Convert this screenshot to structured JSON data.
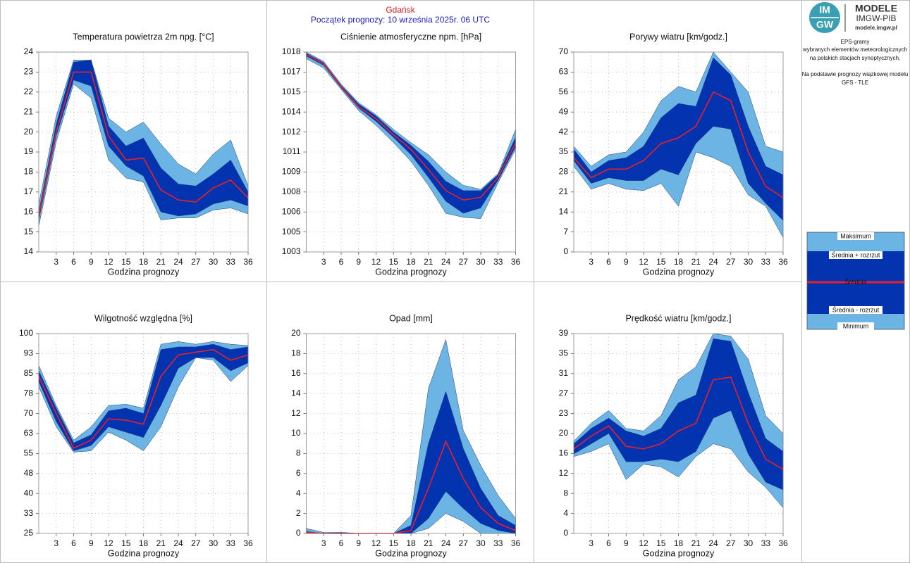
{
  "header": {
    "station": "Gdańsk",
    "subtitle": "Początek prognozy: 10 września 2025r. 06 UTC"
  },
  "sidebar": {
    "logo_top": "IM",
    "logo_bottom": "GW",
    "brand": "MODELE",
    "org": "IMGW-PIB",
    "url": "modele.imgw.pl",
    "description": [
      "EPS-gramy",
      "wybranych elementów meteorologicznych",
      "na polskich stacjach  synoptycznych.",
      "Na podstawie prognozy wiązkowej modelu",
      "GFS - TLE"
    ]
  },
  "legend": {
    "items": [
      {
        "label": "Maksimum",
        "color": "#6cb4e4"
      },
      {
        "label": "Średnia + rozrzut",
        "color": "#0433b0"
      },
      {
        "label": "Średnia",
        "color": "#e8202a"
      },
      {
        "label": "Średnia - rozrzut",
        "color": "#0433b0"
      },
      {
        "label": "Minimum",
        "color": "#6cb4e4"
      }
    ]
  },
  "chart_data": [
    {
      "type": "band",
      "title": "Temperatura powietrza 2m npg. [°C]",
      "xlabel": "Godzina prognozy",
      "x": [
        0,
        3,
        6,
        9,
        12,
        15,
        18,
        21,
        24,
        27,
        30,
        33,
        36
      ],
      "xlim": [
        0,
        36
      ],
      "xticks": [
        3,
        6,
        9,
        12,
        15,
        18,
        21,
        24,
        27,
        30,
        33,
        36
      ],
      "ylim": [
        14,
        24
      ],
      "yticks": [
        14,
        15,
        16,
        17,
        18,
        19,
        20,
        21,
        22,
        23,
        24
      ],
      "grid": true,
      "max": [
        16.4,
        20.8,
        23.6,
        23.6,
        20.7,
        20.0,
        20.5,
        19.4,
        18.4,
        17.9,
        18.9,
        19.6,
        17.3
      ],
      "upper": [
        16.0,
        20.4,
        23.5,
        23.6,
        20.3,
        19.3,
        19.7,
        18.2,
        17.4,
        17.3,
        17.9,
        18.6,
        17.0
      ],
      "mean": [
        15.8,
        20.0,
        23.0,
        23.0,
        19.8,
        18.6,
        18.7,
        17.1,
        16.6,
        16.5,
        17.2,
        17.6,
        16.7
      ],
      "lower": [
        15.6,
        19.8,
        22.6,
        22.3,
        19.3,
        18.3,
        17.8,
        16.0,
        15.8,
        15.9,
        16.4,
        16.6,
        16.3
      ],
      "min": [
        15.3,
        19.5,
        22.4,
        21.7,
        18.6,
        17.7,
        17.5,
        15.6,
        15.7,
        15.7,
        16.1,
        16.2,
        15.9
      ]
    },
    {
      "type": "band",
      "title": "Ciśnienie atmosferyczne npm. [hPa]",
      "xlabel": "Godzina prognozy",
      "x": [
        0,
        3,
        6,
        9,
        12,
        15,
        18,
        21,
        24,
        27,
        30,
        33,
        36
      ],
      "xlim": [
        0,
        36
      ],
      "xticks": [
        3,
        6,
        9,
        12,
        15,
        18,
        21,
        24,
        27,
        30,
        33,
        36
      ],
      "ylim": [
        1003,
        1018
      ],
      "yticks": [
        1003,
        {
          "value": 1004.5,
          "label": "1005"
        },
        1006,
        {
          "value": 1007.5,
          "label": "1008"
        },
        1009,
        {
          "value": 1010.5,
          "label": "1011"
        },
        1012,
        {
          "value": 1013.5,
          "label": "1014"
        },
        1015,
        {
          "value": 1016.5,
          "label": "1017"
        },
        1018
      ],
      "grid": true,
      "max": [
        1018.0,
        1017.3,
        1015.6,
        1014.2,
        1013.3,
        1012.2,
        1011.2,
        1010.3,
        1009.0,
        1008.0,
        1007.7,
        1008.9,
        1012.2
      ],
      "upper": [
        1017.9,
        1017.2,
        1015.5,
        1014.1,
        1013.2,
        1012.0,
        1011.0,
        1009.8,
        1008.3,
        1007.6,
        1007.6,
        1008.8,
        1011.6
      ],
      "mean": [
        1017.8,
        1017.1,
        1015.4,
        1013.9,
        1013.0,
        1011.8,
        1010.7,
        1009.2,
        1007.6,
        1006.9,
        1007.1,
        1008.6,
        1011.2
      ],
      "lower": [
        1017.7,
        1017.0,
        1015.3,
        1013.8,
        1012.8,
        1011.6,
        1010.3,
        1008.6,
        1006.8,
        1005.9,
        1006.3,
        1008.4,
        1010.9
      ],
      "min": [
        1017.5,
        1016.8,
        1015.2,
        1013.6,
        1012.5,
        1011.2,
        1009.8,
        1008.0,
        1005.9,
        1005.6,
        1005.5,
        1008.2,
        1010.7
      ]
    },
    {
      "type": "band",
      "title": "Porywy wiatru [km/godz.]",
      "xlabel": "Godzina prognozy",
      "x": [
        0,
        3,
        6,
        9,
        12,
        15,
        18,
        21,
        24,
        27,
        30,
        33,
        36
      ],
      "xlim": [
        0,
        36
      ],
      "xticks": [
        3,
        6,
        9,
        12,
        15,
        18,
        21,
        24,
        27,
        30,
        33,
        36
      ],
      "ylim": [
        0,
        70
      ],
      "yticks": [
        0,
        7,
        14,
        21,
        28,
        35,
        42,
        49,
        56,
        63,
        70
      ],
      "grid": true,
      "max": [
        37,
        30,
        34,
        35,
        42,
        53,
        58,
        56,
        70,
        63,
        56,
        37,
        35
      ],
      "upper": [
        36,
        28,
        32,
        33,
        37,
        47,
        52,
        51,
        68,
        62,
        44,
        30,
        27
      ],
      "mean": [
        33,
        26,
        29,
        29,
        32,
        38,
        40,
        44,
        56,
        53,
        35,
        23,
        19
      ],
      "lower": [
        32,
        24,
        26,
        25,
        25,
        29,
        27,
        38,
        44,
        43,
        24,
        17,
        11
      ],
      "min": [
        30,
        22,
        24,
        22,
        21.5,
        24,
        16,
        35,
        33,
        30,
        20,
        16,
        5
      ]
    },
    {
      "type": "band",
      "title": "Wilgotność względna [%]",
      "xlabel": "Godzina prognozy",
      "x": [
        0,
        3,
        6,
        9,
        12,
        15,
        18,
        21,
        24,
        27,
        30,
        33,
        36
      ],
      "xlim": [
        0,
        36
      ],
      "xticks": [
        3,
        6,
        9,
        12,
        15,
        18,
        21,
        24,
        27,
        30,
        33,
        36
      ],
      "ylim": [
        25,
        100
      ],
      "yticks": [
        25,
        {
          "value": 32.5,
          "label": "33"
        },
        40,
        {
          "value": 47.5,
          "label": "48"
        },
        55,
        {
          "value": 62.5,
          "label": "63"
        },
        70,
        {
          "value": 77.5,
          "label": "78"
        },
        85,
        {
          "value": 92.5,
          "label": "93"
        },
        100
      ],
      "grid": true,
      "max": [
        88,
        73,
        60,
        65,
        73,
        73.5,
        72,
        96,
        97,
        96,
        97,
        96,
        95.5
      ],
      "upper": [
        86,
        72,
        59,
        62,
        71,
        72,
        70,
        94,
        95,
        95,
        96,
        94,
        95
      ],
      "mean": [
        84,
        70,
        57,
        60,
        68,
        67.5,
        66,
        84,
        92,
        93,
        94,
        90,
        92
      ],
      "lower": [
        82,
        67,
        56,
        58,
        65,
        63,
        61,
        73,
        87,
        91,
        91,
        86,
        89
      ],
      "min": [
        80,
        65,
        55.5,
        56,
        63,
        60,
        56,
        65,
        80,
        91,
        90,
        82,
        88
      ]
    },
    {
      "type": "band",
      "title": "Opad [mm]",
      "xlabel": "Godzina prognozy",
      "x": [
        0,
        3,
        6,
        9,
        12,
        15,
        18,
        21,
        24,
        27,
        30,
        33,
        36
      ],
      "xlim": [
        0,
        36
      ],
      "xticks": [
        3,
        6,
        9,
        12,
        15,
        18,
        21,
        24,
        27,
        30,
        33,
        36
      ],
      "ylim": [
        0,
        20
      ],
      "yticks": [
        0,
        2,
        4,
        6,
        8,
        10,
        12,
        14,
        16,
        18,
        20
      ],
      "grid": true,
      "max": [
        0.5,
        0.1,
        0.1,
        0,
        0,
        0,
        1.8,
        14.5,
        19.4,
        10.3,
        6.8,
        3.8,
        1.5
      ],
      "upper": [
        0.2,
        0,
        0.1,
        0,
        0,
        0,
        0.8,
        9,
        14.2,
        8.5,
        4.5,
        1.8,
        0.8
      ],
      "mean": [
        0.1,
        0,
        0,
        0,
        0,
        0,
        0.3,
        4.5,
        9.2,
        5.5,
        2.6,
        1,
        0.3
      ],
      "lower": [
        0,
        0,
        0,
        0,
        0,
        0,
        0,
        1.5,
        4.2,
        2.5,
        1,
        0.3,
        0
      ],
      "min": [
        0,
        0,
        0,
        0,
        0,
        0,
        0,
        0.5,
        2,
        1.2,
        0,
        0,
        0
      ]
    },
    {
      "type": "band",
      "title": "Prędkość wiatru [km/godz.]",
      "xlabel": "Godzina prognozy",
      "x": [
        0,
        3,
        6,
        9,
        12,
        15,
        18,
        21,
        24,
        27,
        30,
        33,
        36
      ],
      "xlim": [
        0,
        36
      ],
      "xticks": [
        3,
        6,
        9,
        12,
        15,
        18,
        21,
        24,
        27,
        30,
        33,
        36
      ],
      "ylim": [
        0,
        39
      ],
      "yticks": [
        0,
        {
          "value": 3.9,
          "label": "4"
        },
        {
          "value": 7.8,
          "label": "8"
        },
        {
          "value": 11.7,
          "label": "12"
        },
        {
          "value": 15.6,
          "label": "16"
        },
        {
          "value": 19.5,
          "label": "20"
        },
        {
          "value": 23.4,
          "label": "23"
        },
        {
          "value": 27.3,
          "label": "27"
        },
        {
          "value": 31.2,
          "label": "31"
        },
        {
          "value": 35.1,
          "label": "35"
        },
        39
      ],
      "grid": true,
      "max": [
        18,
        21.5,
        24,
        20.5,
        20,
        23,
        30,
        32.5,
        39,
        38.5,
        34,
        23,
        19.5
      ],
      "upper": [
        17.5,
        20.5,
        22.5,
        20,
        19,
        20.5,
        25.5,
        27,
        38,
        37.5,
        27.5,
        18.5,
        16
      ],
      "mean": [
        16.5,
        19,
        21,
        17,
        16.5,
        17.5,
        20,
        21.5,
        30,
        30.5,
        21.5,
        14.5,
        12.5
      ],
      "lower": [
        15.5,
        17.5,
        19.5,
        14,
        14,
        14.5,
        14,
        16,
        22.5,
        24,
        15.5,
        10,
        8.5
      ],
      "min": [
        15,
        16,
        17.5,
        10.5,
        13.5,
        13,
        11,
        15,
        17.5,
        16.5,
        12,
        9,
        5
      ]
    }
  ]
}
